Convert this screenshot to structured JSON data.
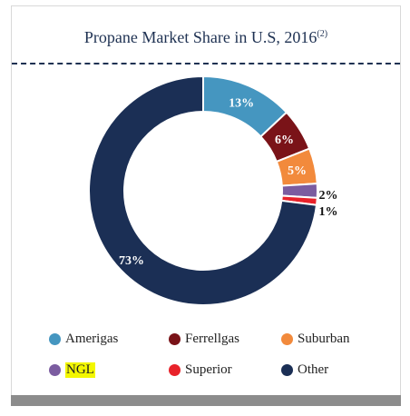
{
  "title": "Propane Market Share in U.S, 2016",
  "title_note": "(2)",
  "chart_data": {
    "type": "pie",
    "donut": true,
    "categories": [
      "Amerigas",
      "Ferrellgas",
      "Suburban",
      "NGL",
      "Superior",
      "Other"
    ],
    "values": [
      13,
      6,
      5,
      2,
      1,
      73
    ],
    "labels": [
      "13%",
      "6%",
      "5%",
      "2%",
      "1%",
      "73%"
    ],
    "colors": [
      "#4596c0",
      "#7a1318",
      "#f28a3c",
      "#7b5ca0",
      "#e8222a",
      "#1b2f55"
    ],
    "legend_position": "bottom"
  }
}
